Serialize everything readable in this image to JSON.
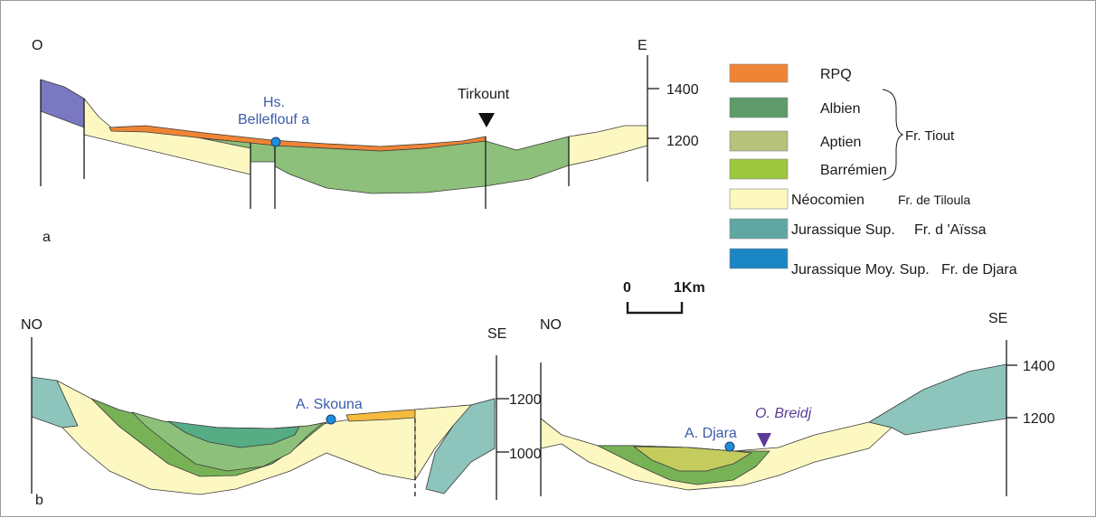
{
  "section_a": {
    "label": "a",
    "left_orientation": "O",
    "right_orientation": "E",
    "scale_ticks": [
      "1400",
      "1200"
    ],
    "places": [
      {
        "name_line1": "Hs.",
        "name_line2": "Belleflouf a"
      },
      {
        "name": "Tirkount"
      }
    ]
  },
  "section_b1": {
    "label": "b",
    "left_orientation": "NO",
    "right_orientation": "SE",
    "scale_ticks": [
      "1200",
      "1000"
    ],
    "place": "A. Skouna"
  },
  "section_b2": {
    "left_orientation": "NO",
    "right_orientation": "SE",
    "scale_ticks": [
      "1400",
      "1200"
    ],
    "place": "A. Djara",
    "river": "O. Breidj"
  },
  "scale_bar": {
    "start": "0",
    "end": "1Km"
  },
  "legend": {
    "items": [
      {
        "label": "RPQ",
        "formation": "",
        "color": "#f08435"
      },
      {
        "label": "Albien",
        "formation": "",
        "color": "#5e9a6a"
      },
      {
        "label": "Aptien",
        "formation": "",
        "color": "#b7c27a"
      },
      {
        "label": "Barrémien",
        "formation": "",
        "color": "#9dc83f"
      },
      {
        "label": "Néocomien",
        "formation": "Fr. de Tiloula",
        "color": "#fdf8bd"
      },
      {
        "label": "Jurassique Sup.",
        "formation": "Fr. d 'Aïssa",
        "color": "#5fa7a3"
      },
      {
        "label": "Jurassique Moy. Sup.",
        "formation": "Fr. de Djara",
        "color": "#1a86c4"
      }
    ],
    "group_label": "Fr. Tiout"
  },
  "colors": {
    "rpq": "#f08435",
    "albien": "#8dc07a",
    "aptien": "#c5cc5e",
    "barremien": "#78b257",
    "neocomien": "#fdf8c2",
    "jurassique_sup": "#8dc4bc",
    "jurassique_moy": "#7a78c0",
    "point": "#1c8fd6",
    "skouna_top": "#f4bb3c",
    "skouna_core": "#56ad85"
  }
}
